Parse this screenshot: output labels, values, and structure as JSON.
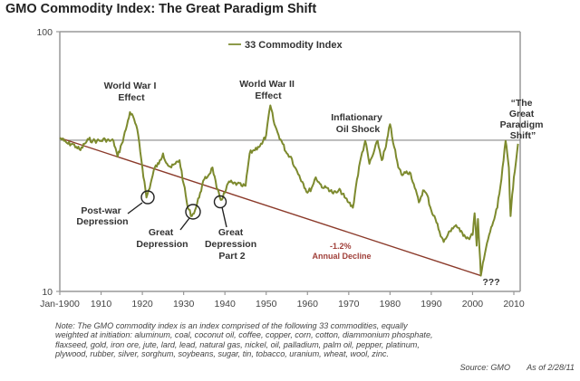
{
  "title": "GMO Commodity Index:  The Great Paradigm Shift",
  "chart_data": {
    "type": "line",
    "title": "GMO Commodity Index:  The Great Paradigm Shift",
    "xlabel": "",
    "ylabel": "",
    "yscale": "log",
    "ylim": [
      10,
      100
    ],
    "xlim": [
      1900,
      2011.5
    ],
    "y_tick_labels": [
      "100",
      "10"
    ],
    "y_ticks": [
      100,
      10
    ],
    "x_ticks": [
      1900,
      1910,
      1920,
      1930,
      1940,
      1950,
      1960,
      1970,
      1980,
      1990,
      2000,
      2010
    ],
    "x_tick_labels": [
      "Jan-1900",
      "1910",
      "1920",
      "1930",
      "1940",
      "1950",
      "1960",
      "1970",
      "1980",
      "1990",
      "2000",
      "2010"
    ],
    "grid": false,
    "legend": {
      "placement": "top-center",
      "entries": [
        "33 Commodity Index"
      ]
    },
    "series": [
      {
        "name": "33 Commodity Index",
        "color": "#7d8a2e",
        "x": [
          1900,
          1901,
          1902,
          1903,
          1904,
          1905,
          1906,
          1907,
          1908,
          1909,
          1910,
          1911,
          1912,
          1913,
          1914,
          1915,
          1916,
          1917,
          1918,
          1919,
          1920,
          1921,
          1922,
          1923,
          1924,
          1925,
          1926,
          1927,
          1928,
          1929,
          1930,
          1931,
          1932,
          1933,
          1934,
          1935,
          1936,
          1937,
          1938,
          1939,
          1940,
          1941,
          1942,
          1943,
          1944,
          1945,
          1946,
          1947,
          1948,
          1949,
          1950,
          1951,
          1952,
          1953,
          1954,
          1955,
          1956,
          1957,
          1958,
          1959,
          1960,
          1961,
          1962,
          1963,
          1964,
          1965,
          1966,
          1967,
          1968,
          1969,
          1970,
          1971,
          1972,
          1973,
          1974,
          1975,
          1976,
          1977,
          1978,
          1979,
          1980,
          1981,
          1982,
          1983,
          1984,
          1985,
          1986,
          1987,
          1988,
          1989,
          1990,
          1991,
          1992,
          1993,
          1994,
          1995,
          1996,
          1997,
          1998,
          1999,
          2000,
          2000.5,
          2001,
          2001.3,
          2002,
          2003,
          2004,
          2005,
          2006,
          2007,
          2008,
          2008.8,
          2009.2,
          2010,
          2011
        ],
        "values": [
          39,
          38,
          37,
          37,
          36,
          35,
          37,
          38.5,
          38,
          38,
          38,
          38.5,
          38,
          38,
          33,
          37,
          42,
          49,
          46,
          40,
          30,
          23,
          26,
          30,
          31,
          34,
          31,
          30,
          31,
          32,
          26,
          21,
          19.5,
          21,
          24,
          27,
          28,
          30,
          25,
          22.5,
          24,
          26.5,
          26,
          26,
          25.5,
          25.5,
          34,
          35,
          36,
          37,
          40,
          52,
          44,
          40,
          37,
          34,
          33,
          30,
          28,
          26,
          24,
          25,
          27.5,
          26,
          25,
          25,
          24,
          24,
          24.5,
          23,
          22,
          21,
          27,
          33,
          38,
          31,
          34,
          38,
          32,
          36,
          44,
          36,
          30,
          28,
          29,
          28.5,
          25,
          22,
          24.5,
          23.5,
          20.5,
          19,
          17,
          15.5,
          16.5,
          17.5,
          18,
          17,
          16.5,
          16,
          16.5,
          20,
          15,
          19,
          11.5,
          14,
          16.5,
          18.5,
          21,
          27,
          38,
          30,
          19.5,
          27.5,
          37
        ]
      },
      {
        "name": "Trend",
        "color": "#8b3a2a",
        "x": [
          1900,
          2002
        ],
        "values": [
          39,
          11.5
        ],
        "label": "-1.2% Annual Decline"
      }
    ],
    "reference_lines": [
      {
        "axis": "y",
        "value": 38.2
      }
    ],
    "annotations": [
      {
        "text": "World War I Effect",
        "x": 1917
      },
      {
        "text": "Post-war Depression",
        "x": 1921,
        "circled": true
      },
      {
        "text": "Great Depression",
        "x": 1932,
        "circled": true
      },
      {
        "text": "Great Depression Part 2",
        "x": 1939,
        "circled": true
      },
      {
        "text": "World War II Effect",
        "x": 1951
      },
      {
        "text": "Inflationary Oil Shock",
        "x": 1978
      },
      {
        "text": "-1.2% Annual Decline",
        "x": 1965
      },
      {
        "text": "???",
        "x": 2003
      },
      {
        "text": "“The Great Paradigm Shift”",
        "x": 2010
      }
    ]
  },
  "labels": {
    "legend": "33 Commodity Index",
    "ww1": [
      "World War I",
      "Effect"
    ],
    "ww2": [
      "World War II",
      "Effect"
    ],
    "oil": [
      "Inflationary",
      "Oil Shock"
    ],
    "postwar": [
      "Post-war",
      "Depression"
    ],
    "great_dep": [
      "Great",
      "Depression"
    ],
    "great_dep2": [
      "Great",
      "Depression",
      "Part 2"
    ],
    "decline": [
      "-1.2%",
      "Annual Decline"
    ],
    "question": "???",
    "paradigm": [
      "“The",
      "Great",
      "Paradigm",
      "Shift”"
    ]
  },
  "note": "Note: The GMO commodity index is an index comprised of the following 33 commodities, equally weighted at initiation:  aluminum, coal, coconut oil, coffee, copper, corn, cotton, diammonium phosphate, flaxseed, gold, iron ore, jute, lard, lead, natural gas, nickel, oil, palladium, palm oil, pepper, platinum, plywood, rubber, silver, sorghum, soybeans, sugar, tin, tobacco, uranium, wheat, wool, zinc.",
  "source": "Source:  GMO",
  "as_of": "As of 2/28/11"
}
